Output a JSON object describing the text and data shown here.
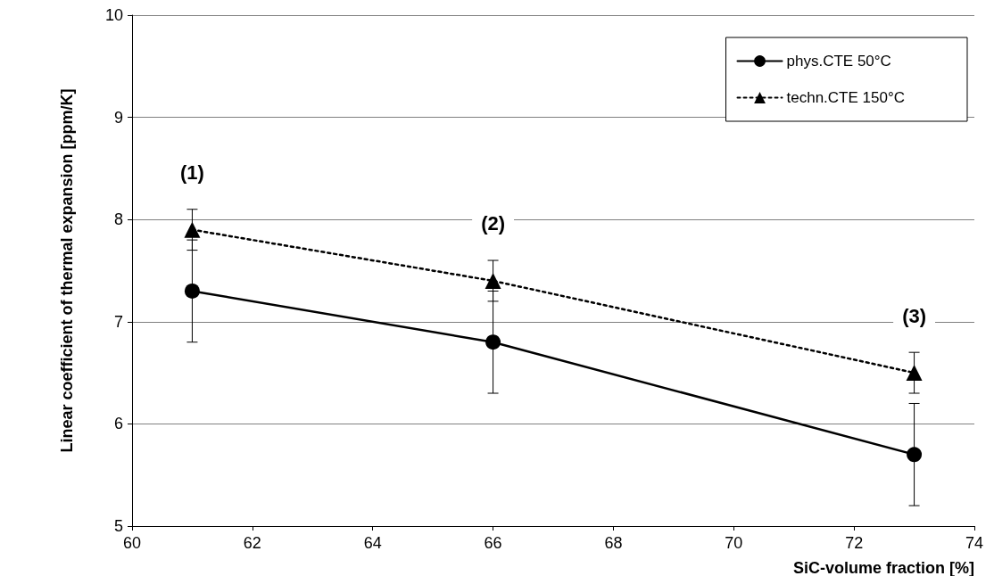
{
  "chart_data": {
    "type": "line",
    "xlabel": "SiC-volume fraction [%]",
    "ylabel": "Linear coefficient of thermal expansion [ppm/K]",
    "x": [
      61,
      66,
      73
    ],
    "series": [
      {
        "name": "phys.CTE 50°C",
        "color": "#000000",
        "values": [
          7.3,
          6.8,
          5.7
        ],
        "errors": [
          0.5,
          0.5,
          0.5
        ],
        "marker": "circle",
        "line_style": "solid"
      },
      {
        "name": "techn.CTE 150°C",
        "color": "#000000",
        "values": [
          7.9,
          7.4,
          6.5
        ],
        "errors": [
          0.2,
          0.2,
          0.2
        ],
        "marker": "triangle",
        "line_style": "dotted"
      }
    ],
    "annotations": [
      {
        "text": "(1)",
        "x": 61,
        "y": 7.9
      },
      {
        "text": "(2)",
        "x": 66,
        "y": 7.4
      },
      {
        "text": "(3)",
        "x": 73,
        "y": 6.5
      }
    ],
    "xlim": [
      60,
      74
    ],
    "xticks": [
      60,
      62,
      64,
      66,
      68,
      70,
      72,
      74
    ],
    "ylim": [
      5,
      10
    ],
    "yticks": [
      5,
      6,
      7,
      8,
      9,
      10
    ],
    "grid": "y",
    "legend": "top right"
  }
}
